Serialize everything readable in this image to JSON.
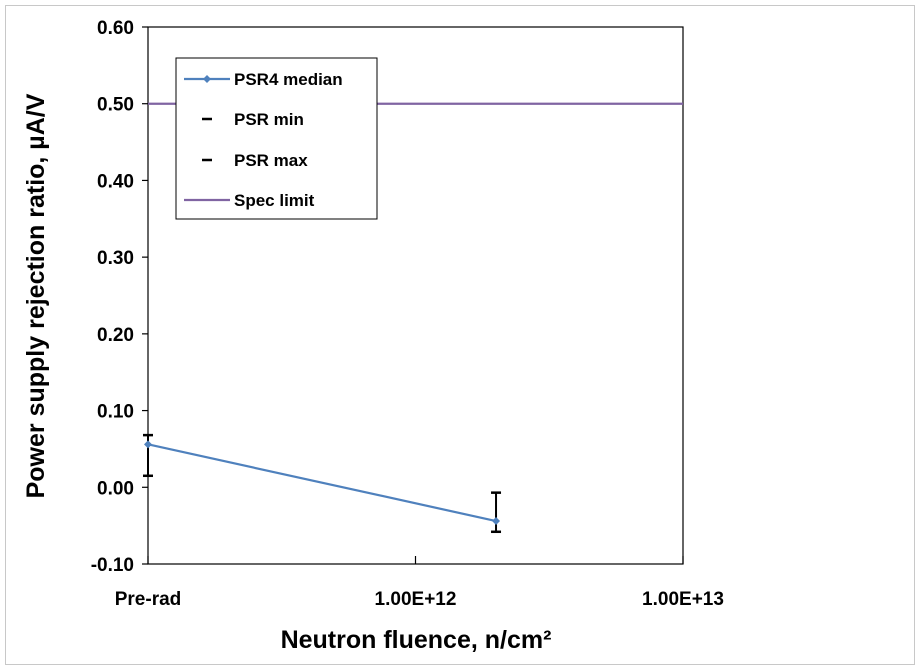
{
  "chart_data": {
    "type": "line",
    "x_categories": [
      "Pre-rad",
      "1.00E+12",
      "1.00E+13"
    ],
    "xlabel": "Neutron fluence, n/cm²",
    "ylabel": "Power supply rejection ratio, µA/V",
    "ylim": [
      -0.1,
      0.6
    ],
    "yticks": [
      "-0.10",
      "0.00",
      "0.10",
      "0.20",
      "0.30",
      "0.40",
      "0.50",
      "0.60"
    ],
    "grid": false,
    "legend_position": "top-left",
    "series": [
      {
        "name": "PSR4 median",
        "color": "#4f81bd",
        "marker": "diamond",
        "points": [
          {
            "x": "Pre-rad",
            "y": 0.056,
            "min": 0.015,
            "max": 0.068
          },
          {
            "x": 2000000000000.0,
            "y": -0.044,
            "min": -0.058,
            "max": -0.007
          }
        ]
      },
      {
        "name": "PSR min",
        "color": "#000000",
        "marker": "dash"
      },
      {
        "name": "PSR max",
        "color": "#000000",
        "marker": "dash"
      },
      {
        "name": "Spec limit",
        "color": "#8064a2",
        "value": 0.5
      }
    ]
  }
}
